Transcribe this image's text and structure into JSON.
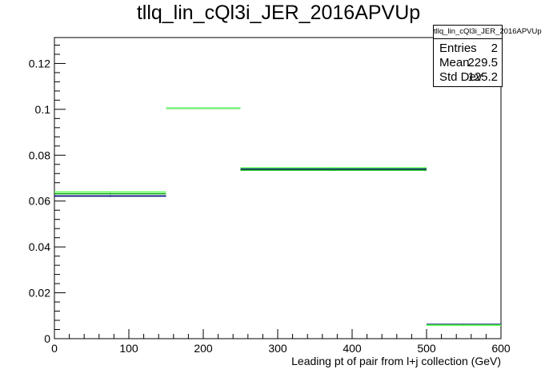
{
  "chart_data": {
    "type": "step-histogram",
    "title": "tllq_lin_cQl3i_JER_2016APVUp",
    "xlabel": "Leading pt of pair from l+j collection (GeV)",
    "ylabel": "",
    "xlim": [
      0,
      600
    ],
    "ylim": [
      0,
      0.1313
    ],
    "x_ticks": [
      0,
      100,
      200,
      300,
      400,
      500,
      600
    ],
    "x_tick_labels": [
      "0",
      "100",
      "200",
      "300",
      "400",
      "500",
      "600"
    ],
    "y_ticks": [
      0,
      0.02,
      0.04,
      0.06,
      0.08,
      0.1,
      0.12
    ],
    "y_tick_labels": [
      "0",
      "0.02",
      "0.04",
      "0.06",
      "0.08",
      "0.1",
      "0.12"
    ],
    "bin_edges": [
      0,
      150,
      250,
      500,
      600
    ],
    "series": [
      {
        "color": "#000080",
        "values": [
          0.0622,
          0.1005,
          0.074,
          0.0062
        ]
      },
      {
        "color": "#00aa00",
        "values": [
          0.0632,
          0.1005,
          0.0735,
          0.006
        ]
      },
      {
        "color": "#66ff66",
        "values": [
          0.064,
          0.1005,
          0.0745,
          0.0058
        ]
      }
    ],
    "legend": "top-right",
    "grid": false
  },
  "stats": {
    "name": "tllq_lin_cQl3i_JER_2016APVUp",
    "entries_label": "Entries",
    "entries_value": "2",
    "mean_label": "Mean",
    "mean_value": "229.5",
    "stddev_label": "Std Dev",
    "stddev_value": "125.2"
  }
}
